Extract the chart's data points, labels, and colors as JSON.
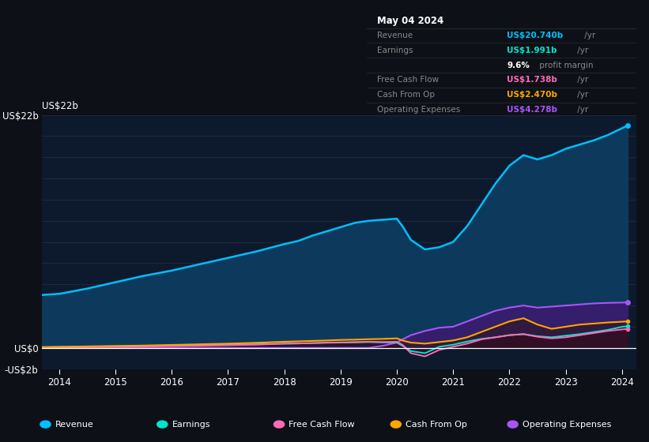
{
  "bg_color": "#0d1117",
  "chart_bg": "#0d1a2e",
  "years": [
    2013.7,
    2014.0,
    2014.5,
    2015.0,
    2015.5,
    2016.0,
    2016.5,
    2017.0,
    2017.5,
    2018.0,
    2018.25,
    2018.5,
    2018.75,
    2019.0,
    2019.25,
    2019.5,
    2019.75,
    2020.0,
    2020.1,
    2020.25,
    2020.5,
    2020.75,
    2021.0,
    2021.25,
    2021.5,
    2021.75,
    2022.0,
    2022.25,
    2022.5,
    2022.75,
    2023.0,
    2023.25,
    2023.5,
    2023.75,
    2024.0,
    2024.1
  ],
  "revenue": [
    5.0,
    5.1,
    5.6,
    6.2,
    6.8,
    7.3,
    7.9,
    8.5,
    9.1,
    9.8,
    10.1,
    10.6,
    11.0,
    11.4,
    11.8,
    12.0,
    12.1,
    12.2,
    11.5,
    10.2,
    9.3,
    9.5,
    10.0,
    11.5,
    13.5,
    15.5,
    17.2,
    18.2,
    17.8,
    18.2,
    18.8,
    19.2,
    19.6,
    20.1,
    20.74,
    21.0
  ],
  "earnings": [
    0.05,
    0.08,
    0.12,
    0.15,
    0.18,
    0.22,
    0.26,
    0.3,
    0.35,
    0.4,
    0.42,
    0.45,
    0.48,
    0.5,
    0.52,
    0.55,
    0.52,
    0.5,
    0.2,
    -0.3,
    -0.5,
    0.1,
    0.3,
    0.6,
    0.85,
    1.0,
    1.2,
    1.3,
    1.1,
    1.0,
    1.15,
    1.3,
    1.5,
    1.7,
    1.991,
    2.05
  ],
  "free_cash_flow": [
    0.02,
    0.05,
    0.07,
    0.1,
    0.13,
    0.16,
    0.2,
    0.25,
    0.3,
    0.4,
    0.42,
    0.45,
    0.5,
    0.52,
    0.55,
    0.58,
    0.55,
    0.58,
    0.3,
    -0.5,
    -0.8,
    -0.2,
    0.1,
    0.4,
    0.8,
    1.0,
    1.2,
    1.3,
    1.05,
    0.9,
    1.0,
    1.2,
    1.4,
    1.6,
    1.738,
    1.8
  ],
  "cash_from_op": [
    0.08,
    0.1,
    0.14,
    0.18,
    0.22,
    0.28,
    0.34,
    0.4,
    0.48,
    0.58,
    0.62,
    0.66,
    0.7,
    0.75,
    0.78,
    0.82,
    0.85,
    0.9,
    0.7,
    0.5,
    0.4,
    0.55,
    0.7,
    1.0,
    1.5,
    2.0,
    2.5,
    2.8,
    2.2,
    1.8,
    2.0,
    2.2,
    2.3,
    2.4,
    2.47,
    2.5
  ],
  "op_expenses": [
    0.0,
    0.0,
    0.0,
    0.0,
    0.0,
    0.0,
    0.0,
    0.0,
    0.0,
    0.0,
    0.0,
    0.0,
    0.0,
    0.0,
    0.0,
    0.0,
    0.2,
    0.5,
    0.8,
    1.2,
    1.6,
    1.9,
    2.0,
    2.5,
    3.0,
    3.5,
    3.8,
    4.0,
    3.8,
    3.9,
    4.0,
    4.1,
    4.2,
    4.25,
    4.278,
    4.3
  ],
  "ylim": [
    -2,
    22
  ],
  "yticks_val": [
    -2,
    0,
    22
  ],
  "ytick_labels": [
    "-US$2b",
    "US$0",
    "US$22b"
  ],
  "xlim": [
    2013.7,
    2024.25
  ],
  "xticks": [
    2014,
    2015,
    2016,
    2017,
    2018,
    2019,
    2020,
    2021,
    2022,
    2023,
    2024
  ],
  "revenue_color": "#00bfff",
  "revenue_fill": "#0d3a5c",
  "earnings_color": "#00e5cc",
  "earnings_fill": "#003333",
  "fcf_color": "#ff69b4",
  "fcf_fill": "#3a0020",
  "cashop_color": "#ffa500",
  "cashop_fill": "#2a1500",
  "opex_color": "#a855f7",
  "opex_fill": "#3d1a6e",
  "grid_color": "#1e2d3d",
  "zero_line_color": "#ffffff",
  "info_box": {
    "bg": "#0a0a0a",
    "border": "#333333",
    "title": "May 04 2024",
    "title_color": "#ffffff",
    "divider": "#2a2a2a",
    "rows": [
      {
        "label": "Revenue",
        "val": "US$20.740b",
        "suffix": " /yr",
        "val_color": "#00bfff",
        "label_color": "#888888"
      },
      {
        "label": "Earnings",
        "val": "US$1.991b",
        "suffix": " /yr",
        "val_color": "#00e5cc",
        "label_color": "#888888"
      },
      {
        "label": "",
        "val": "9.6%",
        "suffix": " profit margin",
        "val_color": "#ffffff",
        "label_color": "#888888"
      },
      {
        "label": "Free Cash Flow",
        "val": "US$1.738b",
        "suffix": " /yr",
        "val_color": "#ff69b4",
        "label_color": "#888888"
      },
      {
        "label": "Cash From Op",
        "val": "US$2.470b",
        "suffix": " /yr",
        "val_color": "#ffa500",
        "label_color": "#888888"
      },
      {
        "label": "Operating Expenses",
        "val": "US$4.278b",
        "suffix": " /yr",
        "val_color": "#a855f7",
        "label_color": "#888888"
      }
    ]
  },
  "legend_items": [
    {
      "label": "Revenue",
      "color": "#00bfff"
    },
    {
      "label": "Earnings",
      "color": "#00e5cc"
    },
    {
      "label": "Free Cash Flow",
      "color": "#ff69b4"
    },
    {
      "label": "Cash From Op",
      "color": "#ffa500"
    },
    {
      "label": "Operating Expenses",
      "color": "#a855f7"
    }
  ]
}
